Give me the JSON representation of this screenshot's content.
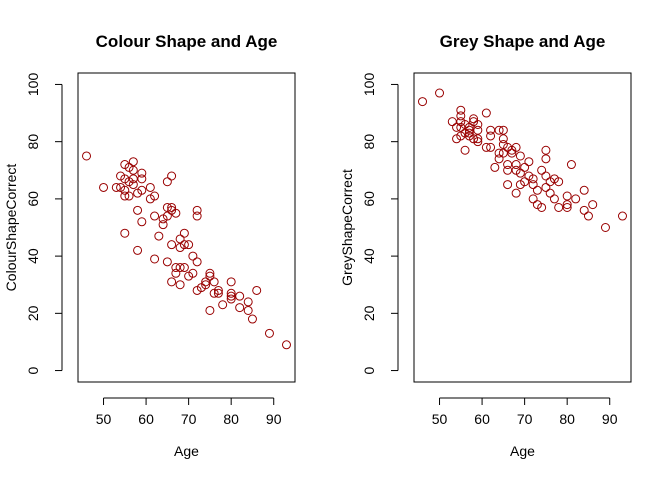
{
  "chart_data": [
    {
      "type": "scatter",
      "title": "Colour Shape and Age",
      "xlabel": "Age",
      "ylabel": "ColourShapeCorrect",
      "xlim": [
        44,
        95
      ],
      "ylim": [
        -4,
        104
      ],
      "xticks": [
        50,
        60,
        70,
        80,
        90
      ],
      "yticks": [
        0,
        20,
        40,
        60,
        80,
        100
      ],
      "marker_color": "#990000",
      "marker": "open-circle",
      "points": [
        [
          46,
          75
        ],
        [
          50,
          64
        ],
        [
          53,
          64
        ],
        [
          54,
          68
        ],
        [
          54,
          64
        ],
        [
          55,
          72
        ],
        [
          55,
          67
        ],
        [
          55,
          63
        ],
        [
          55,
          61
        ],
        [
          55,
          48
        ],
        [
          56,
          71
        ],
        [
          56,
          66
        ],
        [
          56,
          61
        ],
        [
          57,
          73
        ],
        [
          57,
          70
        ],
        [
          57,
          67
        ],
        [
          57,
          65
        ],
        [
          58,
          62
        ],
        [
          58,
          56
        ],
        [
          58,
          42
        ],
        [
          59,
          69
        ],
        [
          59,
          67
        ],
        [
          59,
          63
        ],
        [
          59,
          52
        ],
        [
          61,
          64
        ],
        [
          61,
          60
        ],
        [
          62,
          61
        ],
        [
          62,
          54
        ],
        [
          62,
          39
        ],
        [
          63,
          47
        ],
        [
          64,
          53
        ],
        [
          64,
          51
        ],
        [
          65,
          66
        ],
        [
          65,
          57
        ],
        [
          65,
          54
        ],
        [
          65,
          38
        ],
        [
          66,
          68
        ],
        [
          66,
          57
        ],
        [
          66,
          56
        ],
        [
          66,
          44
        ],
        [
          66,
          31
        ],
        [
          67,
          55
        ],
        [
          67,
          36
        ],
        [
          67,
          34
        ],
        [
          68,
          46
        ],
        [
          68,
          43
        ],
        [
          68,
          36
        ],
        [
          68,
          30
        ],
        [
          69,
          48
        ],
        [
          69,
          44
        ],
        [
          69,
          36
        ],
        [
          70,
          44
        ],
        [
          70,
          33
        ],
        [
          71,
          40
        ],
        [
          71,
          34
        ],
        [
          72,
          56
        ],
        [
          72,
          54
        ],
        [
          72,
          38
        ],
        [
          72,
          28
        ],
        [
          73,
          29
        ],
        [
          74,
          31
        ],
        [
          74,
          30
        ],
        [
          75,
          34
        ],
        [
          75,
          33
        ],
        [
          75,
          21
        ],
        [
          76,
          31
        ],
        [
          76,
          27
        ],
        [
          77,
          28
        ],
        [
          77,
          27
        ],
        [
          78,
          23
        ],
        [
          80,
          31
        ],
        [
          80,
          27
        ],
        [
          80,
          26
        ],
        [
          80,
          25
        ],
        [
          82,
          26
        ],
        [
          82,
          22
        ],
        [
          84,
          24
        ],
        [
          84,
          21
        ],
        [
          85,
          18
        ],
        [
          86,
          28
        ],
        [
          89,
          13
        ],
        [
          93,
          9
        ]
      ]
    },
    {
      "type": "scatter",
      "title": "Grey Shape and Age",
      "xlabel": "Age",
      "ylabel": "GreyShapeCorrect",
      "xlim": [
        44,
        95
      ],
      "ylim": [
        -4,
        104
      ],
      "xticks": [
        50,
        60,
        70,
        80,
        90
      ],
      "yticks": [
        0,
        20,
        40,
        60,
        80,
        100
      ],
      "marker_color": "#990000",
      "marker": "open-circle",
      "points": [
        [
          46,
          94
        ],
        [
          50,
          97
        ],
        [
          53,
          87
        ],
        [
          54,
          85
        ],
        [
          54,
          81
        ],
        [
          55,
          91
        ],
        [
          55,
          89
        ],
        [
          55,
          87
        ],
        [
          55,
          85
        ],
        [
          55,
          82
        ],
        [
          56,
          86
        ],
        [
          56,
          83
        ],
        [
          56,
          77
        ],
        [
          57,
          85
        ],
        [
          57,
          84
        ],
        [
          57,
          83
        ],
        [
          57,
          82
        ],
        [
          58,
          88
        ],
        [
          58,
          87
        ],
        [
          58,
          81
        ],
        [
          59,
          86
        ],
        [
          59,
          84
        ],
        [
          59,
          81
        ],
        [
          59,
          80
        ],
        [
          61,
          90
        ],
        [
          61,
          78
        ],
        [
          62,
          84
        ],
        [
          62,
          82
        ],
        [
          62,
          78
        ],
        [
          63,
          71
        ],
        [
          64,
          84
        ],
        [
          64,
          76
        ],
        [
          64,
          74
        ],
        [
          65,
          84
        ],
        [
          65,
          81
        ],
        [
          65,
          79
        ],
        [
          65,
          76
        ],
        [
          66,
          78
        ],
        [
          66,
          72
        ],
        [
          66,
          70
        ],
        [
          66,
          65
        ],
        [
          67,
          77
        ],
        [
          67,
          76
        ],
        [
          68,
          78
        ],
        [
          68,
          72
        ],
        [
          68,
          70
        ],
        [
          68,
          62
        ],
        [
          69,
          75
        ],
        [
          69,
          69
        ],
        [
          69,
          65
        ],
        [
          70,
          71
        ],
        [
          70,
          66
        ],
        [
          71,
          73
        ],
        [
          71,
          68
        ],
        [
          72,
          67
        ],
        [
          72,
          65
        ],
        [
          72,
          60
        ],
        [
          73,
          63
        ],
        [
          73,
          58
        ],
        [
          74,
          70
        ],
        [
          74,
          57
        ],
        [
          75,
          77
        ],
        [
          75,
          74
        ],
        [
          75,
          68
        ],
        [
          75,
          64
        ],
        [
          76,
          66
        ],
        [
          76,
          62
        ],
        [
          77,
          67
        ],
        [
          77,
          60
        ],
        [
          78,
          66
        ],
        [
          78,
          57
        ],
        [
          80,
          61
        ],
        [
          80,
          58
        ],
        [
          80,
          57
        ],
        [
          81,
          72
        ],
        [
          82,
          60
        ],
        [
          84,
          63
        ],
        [
          84,
          56
        ],
        [
          85,
          54
        ],
        [
          86,
          58
        ],
        [
          89,
          50
        ],
        [
          93,
          54
        ]
      ]
    }
  ]
}
